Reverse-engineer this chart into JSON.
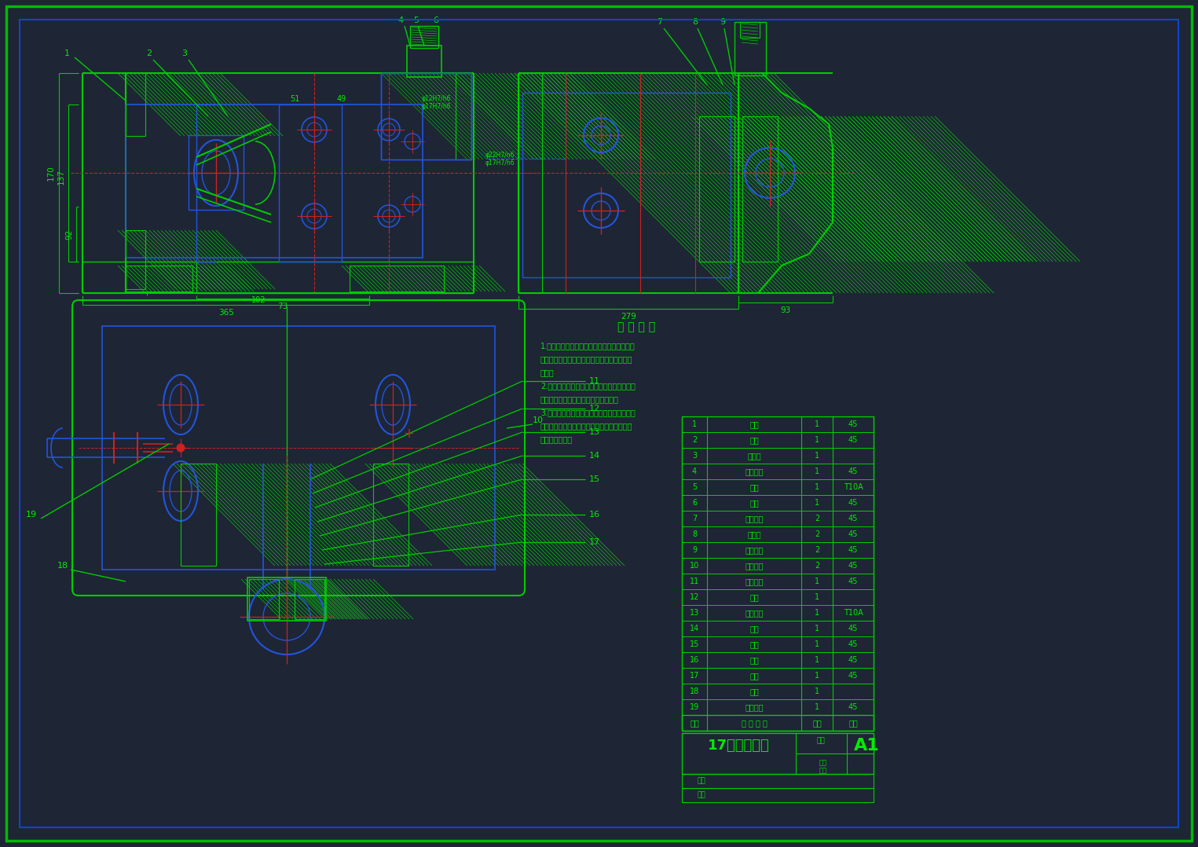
{
  "bg_color": "#1e2535",
  "outer_border_color": "#00bb00",
  "inner_border_color": "#1144cc",
  "gc": "#00cc00",
  "bc": "#2255dd",
  "rc": "#cc2222",
  "tg": "#00ee00",
  "title": "17孔加工夹具",
  "drawing_number": "A1",
  "tech_title": "技 术 要 求",
  "tech_req": [
    "1.进入装配的零件及部件（包括外购件、外协",
    "件），均必须具有检验部门的合格证方能进行",
    "装配。",
    "2.装配前应对零、部件的主要配合尺寸，特别",
    "是过盈配合尺寸及相关精度进行复查。",
    "3.零件在装配前必须清理和清洁干净，不得有",
    "毛刺、飞边、氧化皮、锈蚀、切屑、油污、着",
    "色剂和粉尘等。"
  ],
  "parts_rows": [
    [
      "19",
      "连接螺柱",
      "1",
      "45"
    ],
    [
      "18",
      "压块",
      "1",
      ""
    ],
    [
      "17",
      "螺母",
      "1",
      "45"
    ],
    [
      "16",
      "垫圈",
      "1",
      "45"
    ],
    [
      "15",
      "垫片",
      "1",
      "45"
    ],
    [
      "14",
      "压板",
      "1",
      "45"
    ],
    [
      "13",
      "压紧弹簧",
      "1",
      "T10A"
    ],
    [
      "12",
      "顶杆",
      "1",
      ""
    ],
    [
      "11",
      "压紧螺栓",
      "1",
      "45"
    ],
    [
      "10",
      "连杆螺钉",
      "2",
      "45"
    ],
    [
      "9",
      "连杆螺栓",
      "2",
      "45"
    ],
    [
      "8",
      "定位销",
      "2",
      "45"
    ],
    [
      "7",
      "连接螺栓",
      "2",
      "45"
    ],
    [
      "6",
      "钻套",
      "1",
      "45"
    ],
    [
      "5",
      "衬套",
      "1",
      "T10A"
    ],
    [
      "4",
      "压紧螺母",
      "1",
      "45"
    ],
    [
      "3",
      "支撑钉",
      "1",
      ""
    ],
    [
      "2",
      "螺母",
      "1",
      "45"
    ],
    [
      "1",
      "摇杆",
      "1",
      "45"
    ]
  ]
}
